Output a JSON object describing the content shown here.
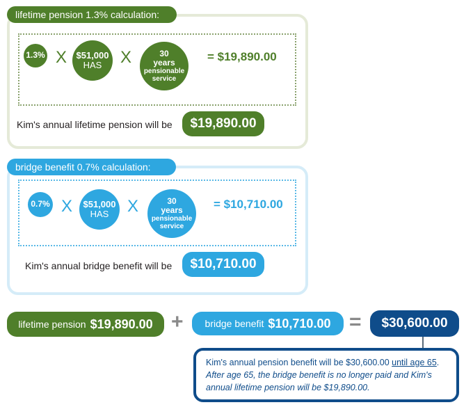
{
  "lifetime": {
    "tab": "lifetime pension 1.3% calculation:",
    "rate": "1.3%",
    "times1": "X",
    "has_value": "$51,000",
    "has_label": "HAS",
    "times2": "X",
    "years_num": "30",
    "years_word": "years",
    "years_desc1": "pensionable",
    "years_desc2": "service",
    "result": "= $19,890.00",
    "sentence": "Kim's annual lifetime pension will be",
    "amount": "$19,890.00"
  },
  "bridge": {
    "tab": "bridge benefit 0.7% calculation:",
    "rate": "0.7%",
    "times1": "X",
    "has_value": "$51,000",
    "has_label": "HAS",
    "times2": "X",
    "years_num": "30",
    "years_word": "years",
    "years_desc1": "pensionable",
    "years_desc2": "service",
    "result": "= $10,710.00",
    "sentence": "Kim's annual bridge benefit will be",
    "amount": "$10,710.00"
  },
  "summary": {
    "lifetime_label": "lifetime pension",
    "lifetime_amount": "$19,890.00",
    "plus": "+",
    "bridge_label": "bridge benefit",
    "bridge_amount": "$10,710.00",
    "equals": "=",
    "total": "$30,600.00"
  },
  "note": {
    "line1_a": "Kim's annual pension benefit will be $30,600.00 ",
    "line1_u": "until age 65",
    "line1_end": ".",
    "line2": "After age 65, the bridge benefit is no longer paid and Kim's annual lifetime pension will be $19,890.00."
  },
  "colors": {
    "green": "#4f7f2a",
    "blue": "#2ea7e0",
    "navy": "#0f4c8a"
  }
}
